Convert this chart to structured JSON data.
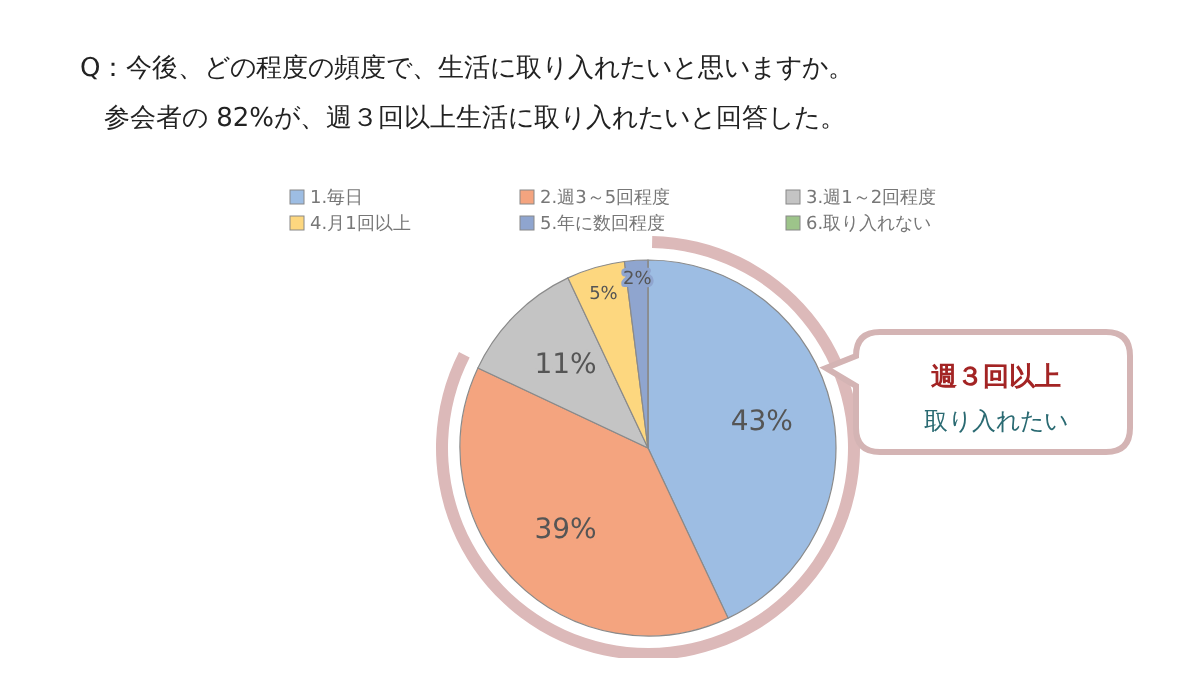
{
  "chart_data": {
    "type": "pie",
    "title": "Q：今後、どの程度の頻度で、生活に取り入れたいと思いますか。",
    "subtitle": "参会者の 82%が、週３回以上生活に取り入れたいと回答した。",
    "categories": [
      "1.毎日",
      "2.週3～5回程度",
      "3.週1～2回程度",
      "4.月1回以上",
      "5.年に数回程度",
      "6.取り入れない"
    ],
    "values": [
      43,
      39,
      11,
      5,
      2,
      0
    ],
    "colors": [
      "#9dbde3",
      "#f4a47f",
      "#c4c4c4",
      "#fdd77f",
      "#8fa5cf",
      "#9dc48a"
    ],
    "value_labels": [
      "43%",
      "39%",
      "11%",
      "5%",
      "2%",
      null
    ],
    "annotations": [
      "週３回以上",
      "取り入れたい"
    ],
    "legend": "top"
  }
}
